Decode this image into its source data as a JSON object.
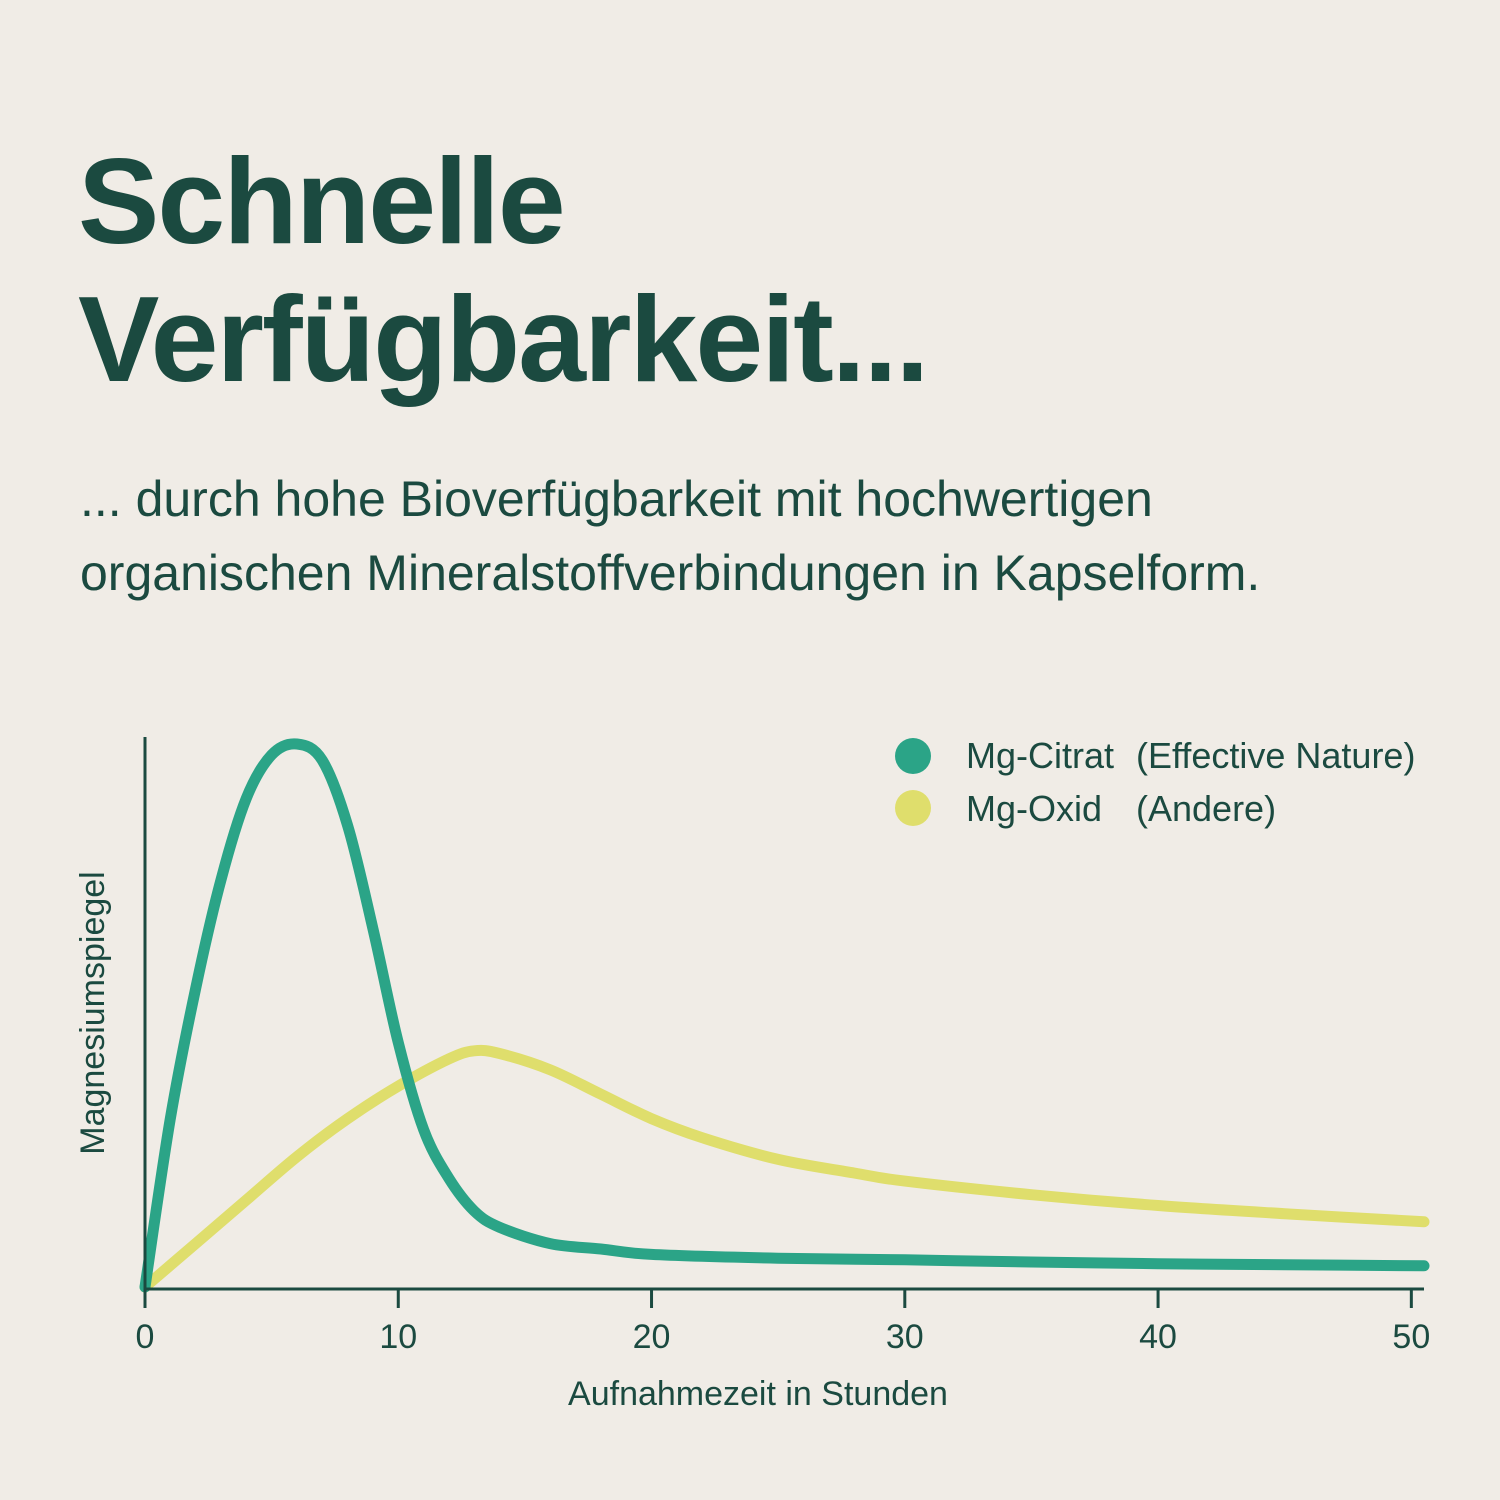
{
  "header": {
    "title_line1": "Schnelle",
    "title_line2": "Verfügbarkeit...",
    "subtitle_line1": "... durch hohe Bioverfügbarkeit mit hochwertigen",
    "subtitle_line2": "organischen Mineralstoffverbindungen in Kapselform."
  },
  "colors": {
    "background": "#f0ece6",
    "text": "#1b4a40",
    "citrat": "#2ba487",
    "oxid": "#dfde6c"
  },
  "chart_data": {
    "type": "line",
    "xlabel": "Aufnahmezeit in Stunden",
    "ylabel": "Magnesiumspiegel",
    "xlim": [
      0,
      50.5
    ],
    "ylim": [
      0,
      100
    ],
    "x_ticks": [
      0,
      10,
      20,
      30,
      40,
      50
    ],
    "x_tick_labels": [
      "0",
      "10",
      "20",
      "30",
      "40",
      "50"
    ],
    "y_ticks_shown": false,
    "grid": false,
    "legend_position": "top-right",
    "series": [
      {
        "name": "Mg-Citrat (Effective Nature)",
        "legend_label_main": "Mg-Citrat",
        "legend_label_note": "(Effective Nature)",
        "color": "#2ba487",
        "x": [
          0,
          1,
          2,
          3,
          4,
          5,
          6,
          7,
          8,
          9,
          10,
          11,
          12,
          13,
          14,
          16,
          18,
          20,
          25,
          30,
          35,
          40,
          45,
          50.5
        ],
        "y": [
          0,
          31,
          55,
          75,
          90,
          98,
          100,
          97,
          85,
          66,
          45,
          29,
          20,
          14,
          11,
          8,
          7,
          6,
          5.3,
          5,
          4.6,
          4.3,
          4.1,
          3.9
        ]
      },
      {
        "name": "Mg-Oxid (Andere)",
        "legend_label_main": "Mg-Oxid",
        "legend_label_note": "(Andere)",
        "color": "#dfde6c",
        "x": [
          0,
          2,
          4,
          6,
          8,
          10,
          12,
          13,
          14,
          16,
          18,
          20,
          22,
          25,
          28,
          30,
          35,
          40,
          45,
          50.5
        ],
        "y": [
          0,
          8,
          16,
          24,
          31,
          37,
          42,
          43.5,
          43,
          40,
          35.5,
          31,
          27.5,
          23.5,
          21,
          19.5,
          17,
          15,
          13.5,
          12
        ]
      }
    ]
  }
}
